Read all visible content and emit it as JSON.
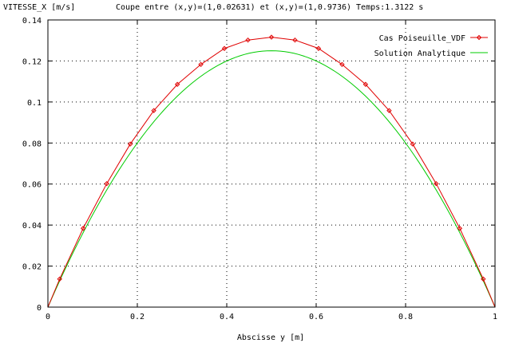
{
  "chart_data": {
    "type": "line",
    "ylabel": "VITESSE_X [m/s]",
    "title": "Coupe entre (x,y)=(1,0.02631) et (x,y)=(1,0.9736) Temps:1.3122 s",
    "xlabel": "Abscisse y [m]",
    "xlim": [
      0,
      1
    ],
    "ylim": [
      0,
      0.14
    ],
    "grid": true,
    "legend_position": "top-right",
    "x_ticks": [
      0,
      0.2,
      0.4,
      0.6,
      0.8,
      1
    ],
    "y_ticks": [
      0,
      0.02,
      0.04,
      0.06,
      0.08,
      0.1,
      0.12,
      0.14
    ],
    "x_tick_labels": [
      "0",
      "0.2",
      "0.4",
      "0.6",
      "0.8",
      "1"
    ],
    "y_tick_labels": [
      "0",
      "0.02",
      "0.04",
      "0.06",
      "0.08",
      "0.1",
      "0.12",
      "0.14"
    ],
    "series": [
      {
        "name": "Cas Poiseuille_VDF",
        "color": "#e00000",
        "marker": "diamond",
        "x": [
          0,
          0.0263,
          0.0789,
          0.1316,
          0.1842,
          0.2368,
          0.2895,
          0.3421,
          0.3947,
          0.4474,
          0.5,
          0.5526,
          0.6053,
          0.6579,
          0.7105,
          0.7632,
          0.8158,
          0.8684,
          0.9211,
          0.9737,
          1
        ],
        "y": [
          0,
          0.0137,
          0.0384,
          0.0602,
          0.0795,
          0.0958,
          0.1086,
          0.1183,
          0.1261,
          0.1302,
          0.1316,
          0.1302,
          0.1261,
          0.1183,
          0.1086,
          0.0958,
          0.0795,
          0.0602,
          0.0384,
          0.0137,
          0
        ],
        "marked_points": [
          false,
          true,
          true,
          true,
          true,
          true,
          true,
          true,
          true,
          true,
          true,
          true,
          true,
          true,
          true,
          true,
          true,
          true,
          true,
          true,
          false
        ]
      },
      {
        "name": "Solution Analytique",
        "color": "#00cc00",
        "marker": "none",
        "x": [
          0,
          0.05,
          0.1,
          0.15,
          0.2,
          0.25,
          0.3,
          0.35,
          0.4,
          0.45,
          0.5,
          0.55,
          0.6,
          0.65,
          0.7,
          0.75,
          0.8,
          0.85,
          0.9,
          0.95,
          1
        ],
        "y": [
          0,
          0.0237,
          0.045,
          0.0637,
          0.08,
          0.0937,
          0.105,
          0.1137,
          0.12,
          0.1237,
          0.125,
          0.1237,
          0.12,
          0.1137,
          0.105,
          0.0937,
          0.08,
          0.0637,
          0.045,
          0.0237,
          0
        ]
      }
    ]
  }
}
